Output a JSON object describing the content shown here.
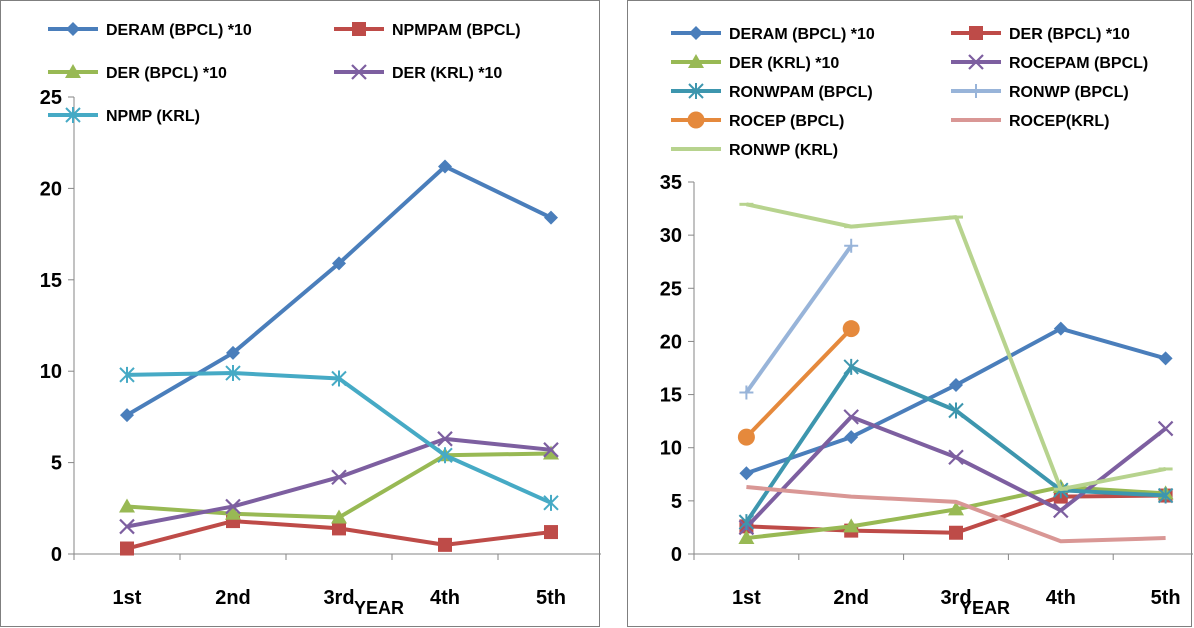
{
  "chart_data": [
    {
      "type": "line",
      "xlabel": "YEAR",
      "categories": [
        "1st",
        "2nd",
        "3rd",
        "4th",
        "5th"
      ],
      "ylim": [
        0,
        25
      ],
      "yticks": [
        0,
        5,
        10,
        15,
        20,
        25
      ],
      "grid": false,
      "legend_position": "top",
      "series": [
        {
          "name": "DERAM (BPCL) *10",
          "color": "#4a7ebb",
          "marker": "diamond",
          "values": [
            7.6,
            11.0,
            15.9,
            21.2,
            18.4
          ]
        },
        {
          "name": "NPMPAM (BPCL)",
          "color": "#be4b48",
          "marker": "square",
          "values": [
            0.3,
            1.8,
            1.4,
            0.5,
            1.2
          ]
        },
        {
          "name": "DER (BPCL) *10",
          "color": "#98b954",
          "marker": "triangle",
          "values": [
            2.6,
            2.2,
            2.0,
            5.4,
            5.5
          ]
        },
        {
          "name": "DER (KRL) *10",
          "color": "#7d5fa0",
          "marker": "x",
          "values": [
            1.5,
            2.6,
            4.2,
            6.3,
            5.7
          ]
        },
        {
          "name": "NPMP (KRL)",
          "color": "#46aac5",
          "marker": "asterisk",
          "values": [
            9.8,
            9.9,
            9.6,
            5.4,
            2.8
          ]
        }
      ]
    },
    {
      "type": "line",
      "xlabel": "YEAR",
      "categories": [
        "1st",
        "2nd",
        "3rd",
        "4th",
        "5th"
      ],
      "ylim": [
        0,
        35
      ],
      "yticks": [
        0,
        5,
        10,
        15,
        20,
        25,
        30,
        35
      ],
      "grid": false,
      "legend_position": "top",
      "series": [
        {
          "name": "DERAM (BPCL) *10",
          "color": "#4a7ebb",
          "marker": "diamond",
          "values": [
            7.6,
            11.0,
            15.9,
            21.2,
            18.4
          ]
        },
        {
          "name": "DER (BPCL) *10",
          "color": "#be4b48",
          "marker": "square",
          "values": [
            2.6,
            2.2,
            2.0,
            5.4,
            5.5
          ]
        },
        {
          "name": "DER (KRL) *10",
          "color": "#98b954",
          "marker": "triangle",
          "values": [
            1.5,
            2.6,
            4.2,
            6.3,
            5.7
          ]
        },
        {
          "name": "ROCEPAM (BPCL)",
          "color": "#7d5fa0",
          "marker": "x",
          "values": [
            2.5,
            12.9,
            9.1,
            4.1,
            11.8
          ]
        },
        {
          "name": "RONWPAM (BPCL)",
          "color": "#3d96ae",
          "marker": "asterisk",
          "values": [
            3.0,
            17.6,
            13.5,
            6.0,
            5.5
          ]
        },
        {
          "name": "RONWP (BPCL)",
          "color": "#98b4d9",
          "marker": "plus",
          "values": [
            15.2,
            29.0,
            null,
            null,
            null
          ]
        },
        {
          "name": "ROCEP (BPCL)",
          "color": "#e5893c",
          "marker": "circle",
          "values": [
            11.0,
            21.2,
            null,
            null,
            null
          ]
        },
        {
          "name": "ROCEP(KRL)",
          "color": "#d99795",
          "marker": "none",
          "values": [
            6.3,
            5.4,
            4.9,
            1.2,
            1.5
          ]
        },
        {
          "name": "RONWP (KRL)",
          "color": "#b7d38e",
          "marker": "dash",
          "values": [
            32.9,
            30.8,
            31.7,
            6.1,
            8.0
          ]
        }
      ]
    }
  ]
}
